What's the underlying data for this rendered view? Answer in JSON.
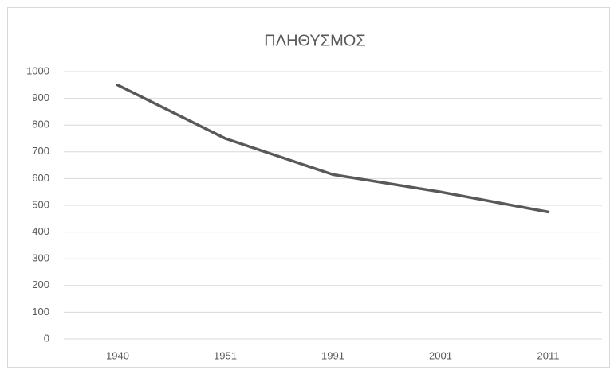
{
  "chart_data": {
    "type": "line",
    "title": "ΠΛΗΘΥΣΜΟΣ",
    "categories": [
      "1940",
      "1951",
      "1991",
      "2001",
      "2011"
    ],
    "values": [
      950,
      750,
      615,
      550,
      475
    ],
    "color": "#595959",
    "ylim": [
      0,
      1000
    ],
    "yticks": [
      0,
      100,
      200,
      300,
      400,
      500,
      600,
      700,
      800,
      900,
      1000
    ],
    "grid": true
  }
}
